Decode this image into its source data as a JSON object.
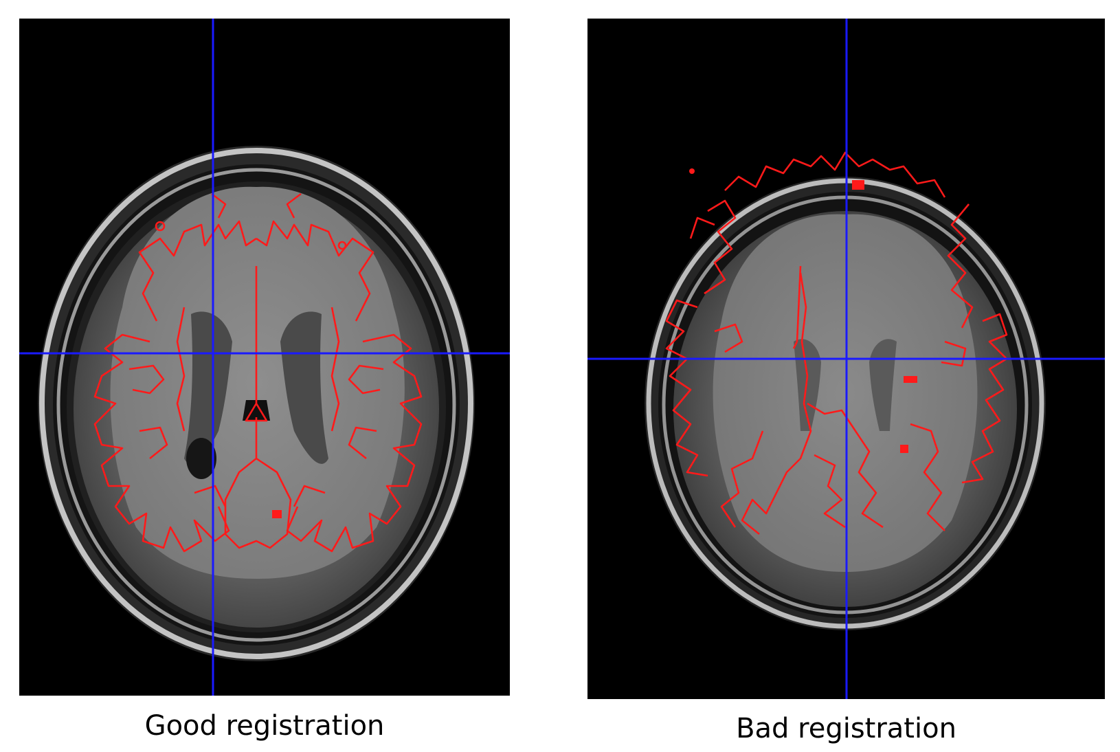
{
  "panels": [
    {
      "caption": "Good registration",
      "scan": "axial T1-weighted brain MRI slice",
      "overlay": "registered white-matter boundary contour",
      "alignment": "aligned"
    },
    {
      "caption": "Bad registration",
      "scan": "axial T1-weighted brain MRI slice",
      "overlay": "registered white-matter boundary contour",
      "alignment": "misaligned"
    }
  ],
  "colors": {
    "background": "#000000",
    "contour": "#ff1a1a",
    "crosshair": "#1a1aff",
    "skull": "#b8b8b8",
    "brain": "#5a5a5a",
    "white_matter": "#8a8a8a",
    "ventricle": "#1c1c1c"
  }
}
